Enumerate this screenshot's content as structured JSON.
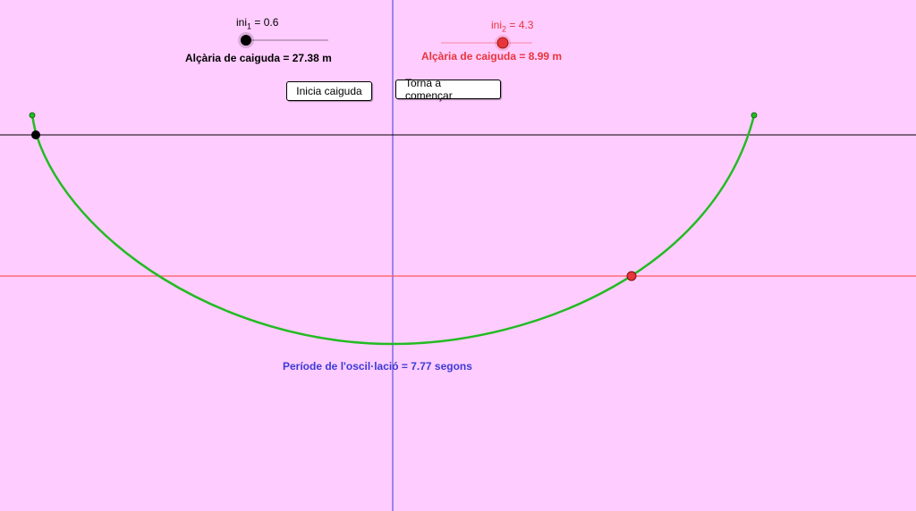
{
  "slider1": {
    "name": "ini",
    "subscript": "1",
    "value_text": " = 0.6",
    "value": 0.6,
    "color": "#000000"
  },
  "slider2": {
    "name": "ini",
    "subscript": "2",
    "value_text": " = 4.3",
    "value": 4.3,
    "color": "#e8353b"
  },
  "result1": {
    "text": "Alçària de caiguda = 27.38 m",
    "color": "#000000"
  },
  "result2": {
    "text": "Alçària de caiguda = 8.99  m",
    "color": "#e8353b"
  },
  "buttons": {
    "start": "Inicia caiguda",
    "restart": "Torna a començar"
  },
  "period": {
    "text": "Període de l'oscil·lació = 7.77 segons",
    "color": "#3b3bd6"
  },
  "colors": {
    "background": "#ffccff",
    "curve": "#22bb22",
    "x_axis": "#000000",
    "y_axis": "#3b3bd6",
    "red_line": "#ff5a5a",
    "point1": "#000000",
    "point2": "#e8353b"
  }
}
